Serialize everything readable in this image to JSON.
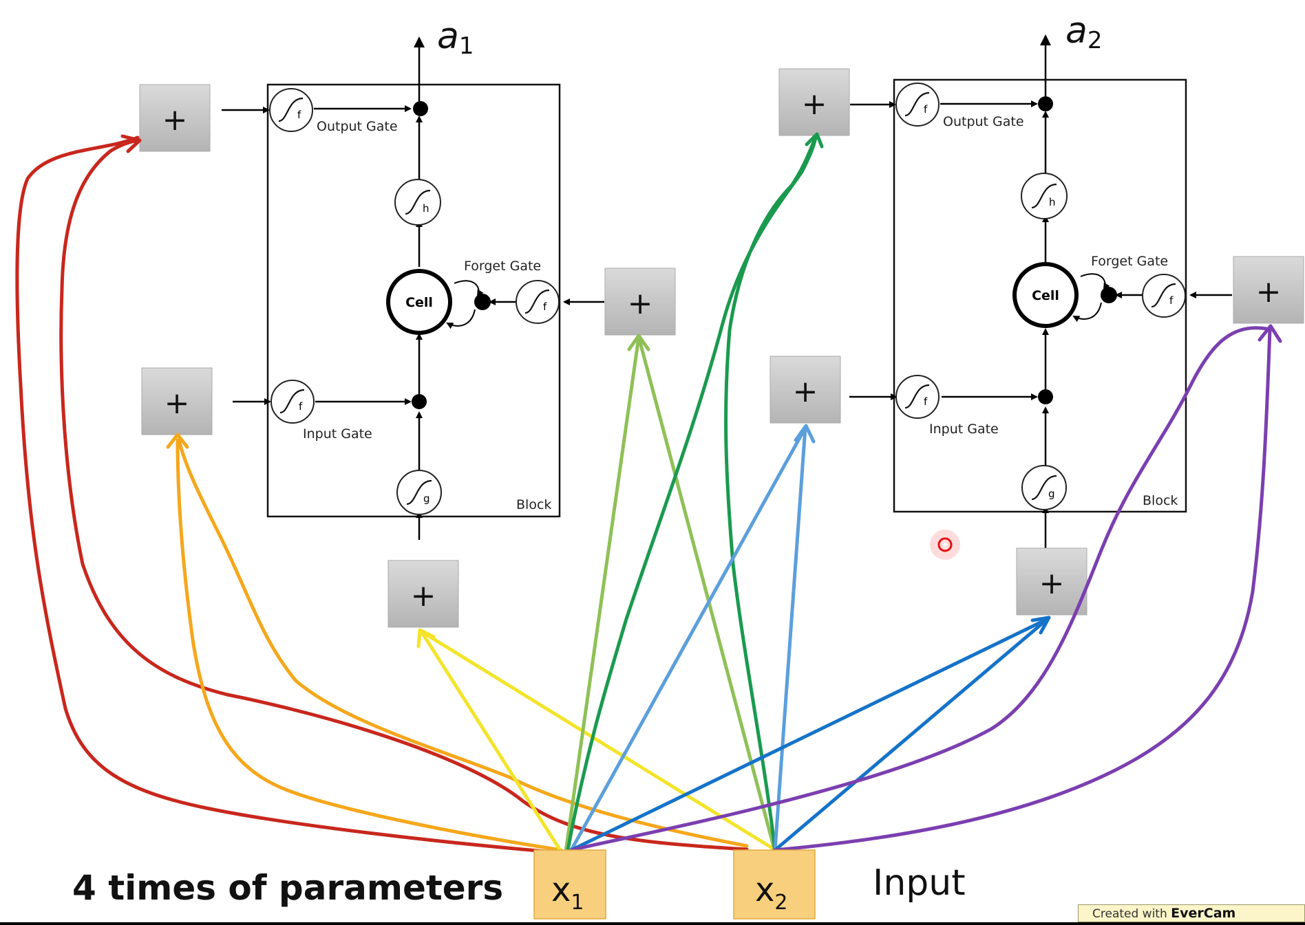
{
  "blocks": [
    {
      "output_label": "a",
      "output_sub": "1",
      "output_gate": "Output Gate",
      "forget_gate": "Forget Gate",
      "input_gate": "Input Gate",
      "cell": "Cell",
      "block": "Block",
      "sym_f": "f",
      "sym_h": "h",
      "sym_g": "g"
    },
    {
      "output_label": "a",
      "output_sub": "2",
      "output_gate": "Output Gate",
      "forget_gate": "Forget Gate",
      "input_gate": "Input Gate",
      "cell": "Cell",
      "block": "Block",
      "sym_f": "f",
      "sym_h": "h",
      "sym_g": "g"
    }
  ],
  "plus": "+",
  "inputs": [
    {
      "symbol": "x",
      "sub": "1"
    },
    {
      "symbol": "x",
      "sub": "2"
    }
  ],
  "input_label": "Input",
  "caption": "4 times of parameters",
  "watermark": {
    "prefix": "Created with",
    "brand": "EverCam"
  },
  "colors": {
    "red": "#c8271d",
    "orange": "#f5a71b",
    "yellow": "#f3e42a",
    "light_green": "#8fc056",
    "dark_green": "#1a9a4f",
    "light_blue": "#5b9fdb",
    "blue": "#1573c9",
    "purple": "#7b3fb0",
    "input_box": "#f8cf7c",
    "plus_box": "#c8c8c8"
  }
}
